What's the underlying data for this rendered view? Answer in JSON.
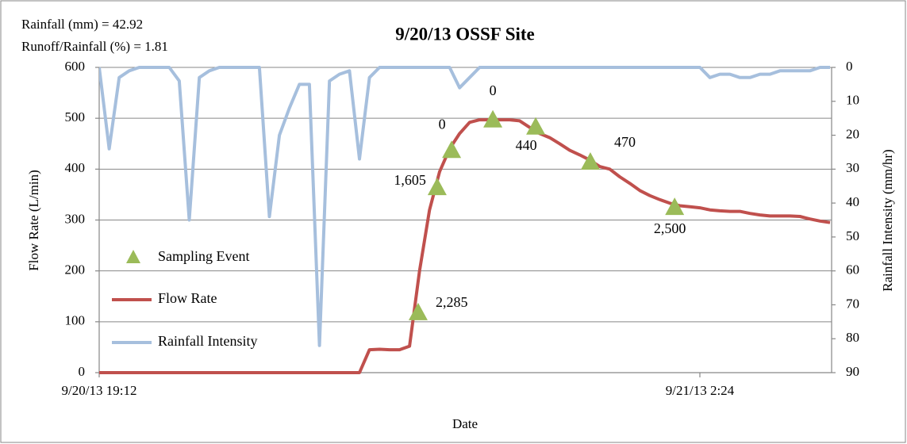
{
  "chart_data": {
    "type": "line",
    "title": "9/20/13 OSSF Site",
    "annotations": [
      "Rainfall (mm) = 42.92",
      "Runoff/Rainfall (%) = 1.81"
    ],
    "x_label": "Date",
    "y_label": "Flow Rate (L/min)",
    "y2_label": "Rainfall Intensity (mm/hr)",
    "xlim": [
      41537.8,
      41538.1658
    ],
    "xticks": [
      {
        "value": 41537.8,
        "label": "9/20/13 19:12"
      },
      {
        "value": 41538.1,
        "label": "9/21/13 2:24"
      }
    ],
    "ylim": [
      0,
      600
    ],
    "yticks": [
      0,
      100,
      200,
      300,
      400,
      500,
      600
    ],
    "y2lim": [
      90,
      0
    ],
    "y2ticks": [
      0,
      10,
      20,
      30,
      40,
      50,
      60,
      70,
      80,
      90
    ],
    "grid": true,
    "x": [
      41537.8,
      41537.805,
      41537.81,
      41537.815,
      41537.82,
      41537.825,
      41537.83,
      41537.835,
      41537.84,
      41537.845,
      41537.85,
      41537.855,
      41537.86,
      41537.865,
      41537.87,
      41537.875,
      41537.88,
      41537.885,
      41537.89,
      41537.895,
      41537.9,
      41537.905,
      41537.91,
      41537.915,
      41537.92,
      41537.925,
      41537.93,
      41537.935,
      41537.94,
      41537.945,
      41537.95,
      41537.955,
      41537.96,
      41537.965,
      41537.97,
      41537.975,
      41537.98,
      41537.985,
      41537.99,
      41537.995,
      41538,
      41538.005,
      41538.01,
      41538.015,
      41538.02,
      41538.025,
      41538.03,
      41538.035,
      41538.04,
      41538.045,
      41538.05,
      41538.055,
      41538.06,
      41538.065,
      41538.07,
      41538.075,
      41538.08,
      41538.085,
      41538.09,
      41538.095,
      41538.1,
      41538.105,
      41538.11,
      41538.115,
      41538.12,
      41538.125,
      41538.13,
      41538.135,
      41538.14,
      41538.145,
      41538.15,
      41538.155,
      41538.16,
      41538.165
    ],
    "series": [
      {
        "name": "Sampling Event",
        "type": "scatter",
        "color": "#9bbb59",
        "x": [
          41537.9593,
          41537.9688,
          41537.976,
          41537.9966,
          41538.018,
          41538.0453,
          41538.0874
        ],
        "values": [
          117,
          363,
          436,
          496,
          482,
          413,
          324
        ],
        "labels": [
          "2,285",
          "1,605",
          "0",
          "0",
          "440",
          "470",
          "2,500"
        ]
      },
      {
        "name": "Flow Rate",
        "type": "line",
        "color": "#c0504d",
        "values": [
          0,
          0,
          0,
          0,
          0,
          0,
          0,
          0,
          0,
          0,
          0,
          0,
          0,
          0,
          0,
          0,
          0,
          0,
          0,
          0,
          0,
          0,
          0,
          0,
          0,
          0,
          0,
          45,
          46,
          45,
          45,
          52,
          200,
          320,
          395,
          440,
          470,
          492,
          497,
          497,
          497,
          497,
          495,
          482,
          470,
          462,
          450,
          437,
          428,
          418,
          405,
          400,
          385,
          372,
          358,
          348,
          340,
          333,
          328,
          326,
          324,
          320,
          318,
          317,
          317,
          313,
          310,
          308,
          308,
          308,
          307,
          302,
          298,
          295
        ]
      },
      {
        "name": "Rainfall Intensity",
        "type": "line",
        "axis": "y2",
        "color": "#a6bfdd",
        "values": [
          0,
          24,
          3,
          1,
          0,
          0,
          0,
          0,
          4,
          45,
          3,
          1,
          0,
          0,
          0,
          0,
          0,
          44,
          20,
          12,
          5,
          5,
          82,
          4,
          2,
          1,
          27,
          3,
          0,
          0,
          0,
          0,
          0,
          0,
          0,
          0,
          6,
          3,
          0,
          0,
          0,
          0,
          0,
          0,
          0,
          0,
          0,
          0,
          0,
          0,
          0,
          0,
          0,
          0,
          0,
          0,
          0,
          0,
          0,
          0,
          0,
          3,
          2,
          2,
          3,
          3,
          2,
          2,
          1,
          1,
          1,
          1,
          0,
          0
        ]
      }
    ]
  }
}
